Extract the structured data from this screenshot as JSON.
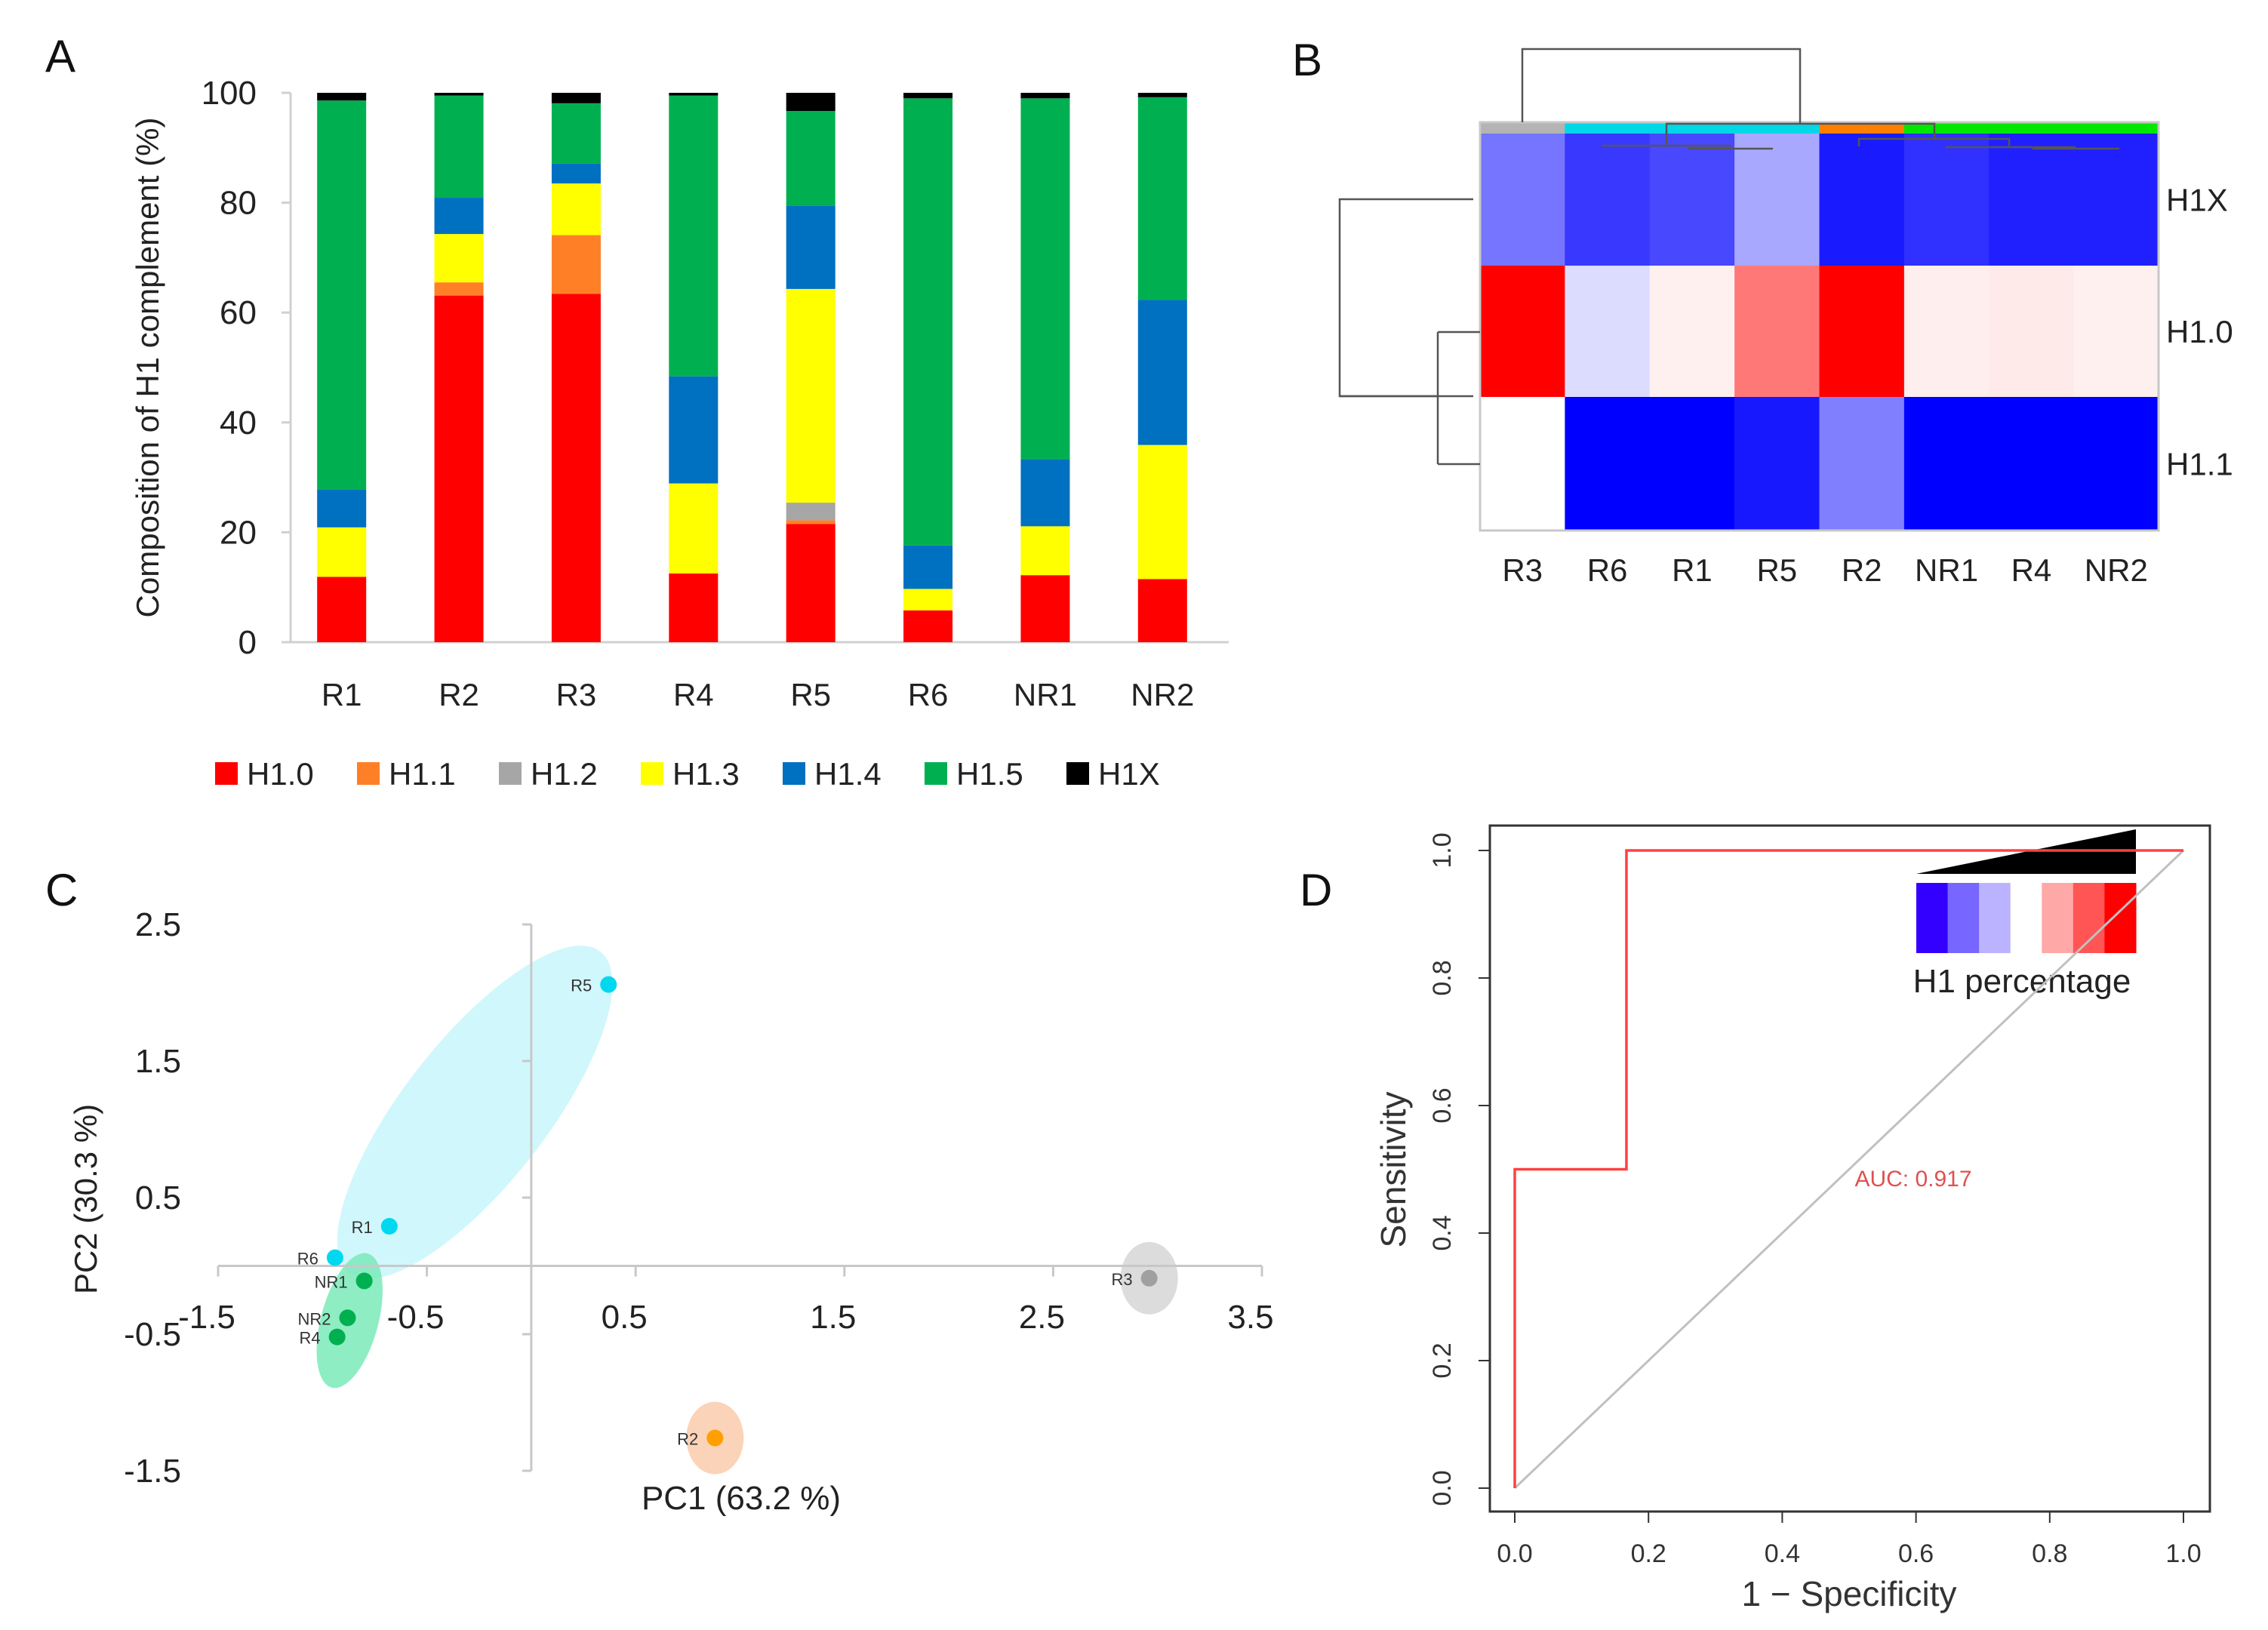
{
  "panels": {
    "a": "A",
    "b": "B",
    "c": "C",
    "d": "D"
  },
  "colors": {
    "H1.0": "#ff0000",
    "H1.1": "#ff7f27",
    "H1.2": "#a6a6a6",
    "H1.3": "#ffff00",
    "H1.4": "#0070c0",
    "H1.5": "#00b050",
    "H1X": "#000000"
  },
  "chart_data": [
    {
      "type": "bar",
      "stacked": true,
      "title": "",
      "xlabel": "",
      "ylabel": "Composition of H1 complement (%)",
      "ylim": [
        0,
        100
      ],
      "yticks": [
        "0",
        "20",
        "40",
        "60",
        "80",
        "100"
      ],
      "categories": [
        "R1",
        "R2",
        "R3",
        "R4",
        "R5",
        "R6",
        "NR1",
        "NR2"
      ],
      "legend_position": "bottom",
      "series": [
        {
          "name": "H1.0",
          "values": [
            11.9,
            63.1,
            63.4,
            12.5,
            21.5,
            5.8,
            12.2,
            11.5
          ]
        },
        {
          "name": "H1.1",
          "values": [
            0,
            2.4,
            10.7,
            0,
            0.7,
            0,
            0,
            0
          ]
        },
        {
          "name": "H1.2",
          "values": [
            0,
            0,
            0,
            0,
            3.2,
            0,
            0,
            0
          ]
        },
        {
          "name": "H1.3",
          "values": [
            9.0,
            8.8,
            9.4,
            16.4,
            38.9,
            3.9,
            8.9,
            24.4
          ]
        },
        {
          "name": "H1.4",
          "values": [
            6.9,
            6.6,
            3.6,
            19.5,
            15.1,
            7.9,
            12.2,
            26.4
          ]
        },
        {
          "name": "H1.5",
          "values": [
            70.8,
            18.6,
            11.0,
            51.1,
            17.3,
            81.4,
            65.7,
            36.9
          ]
        },
        {
          "name": "H1X",
          "values": [
            1.4,
            0.5,
            1.9,
            0.5,
            3.3,
            1.0,
            1.0,
            0.8
          ]
        }
      ]
    },
    {
      "type": "heatmap",
      "columns": [
        "R3",
        "R6",
        "R1",
        "R5",
        "R2",
        "NR1",
        "R4",
        "NR2"
      ],
      "rows": [
        "H1X",
        "H1.0",
        "H1.1"
      ],
      "column_groups": [
        "#b4b4b4",
        "#00d8e8",
        "#00d8e8",
        "#00d8e8",
        "#ff7f00",
        "#00e800",
        "#00e800",
        "#00e800"
      ],
      "cell_colors": [
        [
          "#7575ff",
          "#3838ff",
          "#4848ff",
          "#a8a8ff",
          "#1a1aff",
          "#3030ff",
          "#2020ff",
          "#2020ff"
        ],
        [
          "#ff0000",
          "#dcdcff",
          "#fff0f0",
          "#ff7878",
          "#ff0000",
          "#ffeeee",
          "#ffeaea",
          "#fff0f0"
        ],
        [
          "#ffffff",
          "#0000ff",
          "#0000ff",
          "#1818ff",
          "#8080ff",
          "#0000ff",
          "#0000ff",
          "#0000ff"
        ]
      ],
      "legend_title": "H1 percentage",
      "legend_colors": [
        "#3300ff",
        "#7766ff",
        "#bbb3ff",
        "#ffffff",
        "#ffa8a8",
        "#ff5555",
        "#ff0000"
      ]
    },
    {
      "type": "scatter",
      "xlabel": "PC1 (63.2 %)",
      "ylabel": "PC2 (30.3 %)",
      "xlim": [
        -1.5,
        3.5
      ],
      "ylim": [
        -1.5,
        2.5
      ],
      "xticks": [
        "-1.5",
        "-0.5",
        "0.5",
        "1.5",
        "2.5",
        "3.5"
      ],
      "yticks": [
        "2.5",
        "1.5",
        "0.5",
        "-0.5",
        "-1.5"
      ],
      "points": [
        {
          "label": "R5",
          "x": 0.37,
          "y": 2.06,
          "color": "#00d8f0"
        },
        {
          "label": "R1",
          "x": -0.68,
          "y": 0.29,
          "color": "#00d8f0"
        },
        {
          "label": "R6",
          "x": -0.94,
          "y": 0.06,
          "color": "#00d8f0"
        },
        {
          "label": "NR1",
          "x": -0.8,
          "y": -0.11,
          "color": "#00b050"
        },
        {
          "label": "NR2",
          "x": -0.88,
          "y": -0.38,
          "color": "#00b050"
        },
        {
          "label": "R4",
          "x": -0.93,
          "y": -0.52,
          "color": "#00b050"
        },
        {
          "label": "R3",
          "x": 2.96,
          "y": -0.09,
          "color": "#a0a0a0"
        },
        {
          "label": "R2",
          "x": 0.88,
          "y": -1.26,
          "color": "#ffa000"
        }
      ]
    },
    {
      "type": "line",
      "xlabel": "1 − Specificity",
      "ylabel": "Sensitivity",
      "xlim": [
        0,
        1
      ],
      "ylim": [
        0,
        1
      ],
      "xticks": [
        "0.0",
        "0.2",
        "0.4",
        "0.6",
        "0.8",
        "1.0"
      ],
      "yticks": [
        "0.0",
        "0.2",
        "0.4",
        "0.6",
        "0.8",
        "1.0"
      ],
      "roc": {
        "x": [
          0,
          0,
          0.167,
          0.167,
          1
        ],
        "y": [
          0,
          0.5,
          0.5,
          1,
          1
        ],
        "color": "#ff4040"
      },
      "diagonal": {
        "x": [
          0,
          1
        ],
        "y": [
          0,
          1
        ],
        "color": "#c0c0c0"
      },
      "annotation": "AUC: 0.917"
    }
  ]
}
